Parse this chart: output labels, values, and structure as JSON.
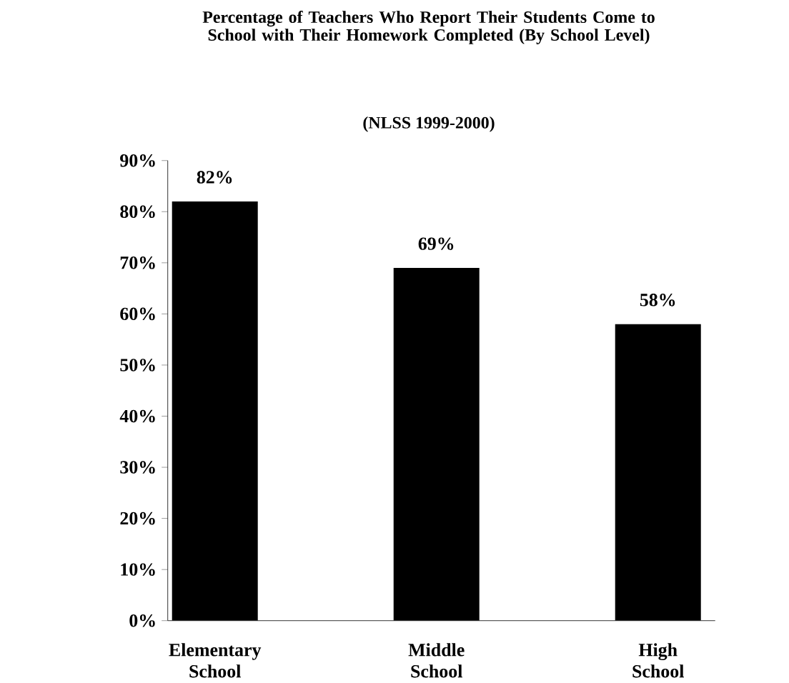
{
  "chart_data": {
    "type": "bar",
    "title": "Percentage of Teachers Who Report Their Students Come to School with Their Homework Completed (By School Level)",
    "subtitle": "(NLSS 1999-2000)",
    "categories": [
      "Elementary School",
      "Middle School",
      "High School"
    ],
    "values": [
      82,
      69,
      58
    ],
    "value_labels": [
      "82%",
      "69%",
      "58%"
    ],
    "color": "#000000",
    "ylim": [
      0,
      90
    ],
    "yticks": [
      {
        "value": 0,
        "label": "0%"
      },
      {
        "value": 10,
        "label": "10%"
      },
      {
        "value": 20,
        "label": "20%"
      },
      {
        "value": 30,
        "label": "30%"
      },
      {
        "value": 40,
        "label": "40%"
      },
      {
        "value": 50,
        "label": "50%"
      },
      {
        "value": 60,
        "label": "60%"
      },
      {
        "value": 70,
        "label": "70%"
      },
      {
        "value": 80,
        "label": "80%"
      },
      {
        "value": 90,
        "label": "90%"
      }
    ]
  }
}
